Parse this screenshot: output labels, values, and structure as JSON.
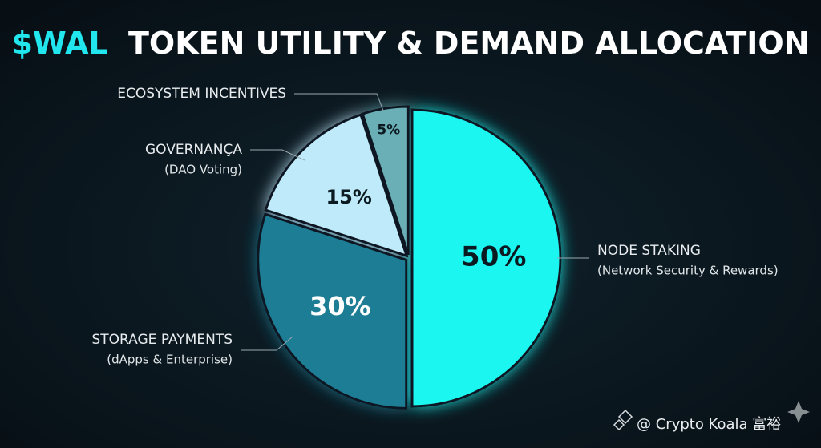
{
  "chart_data": {
    "type": "pie",
    "title": [
      "$WAL",
      "TOKEN UTILITY & DEMAND ALLOCATION"
    ],
    "categories": [
      "NODE STAKING",
      "STORAGE PAYMENTS",
      "GOVERNANÇA",
      "ECOSYSTEM INCENTIVES"
    ],
    "subtitles": [
      "(Network Security & Rewards)",
      "(dApps & Enterprise)",
      "(DAO Voting)",
      null
    ],
    "values": [
      50,
      30,
      15,
      5
    ],
    "value_labels": [
      "50%",
      "30%",
      "15%",
      "5%"
    ],
    "colors": [
      "#1ef6f1",
      "#1f7d95",
      "#bfeafa",
      "#6aaeb6"
    ],
    "watermark": "@ Crypto Koala 富裕"
  }
}
